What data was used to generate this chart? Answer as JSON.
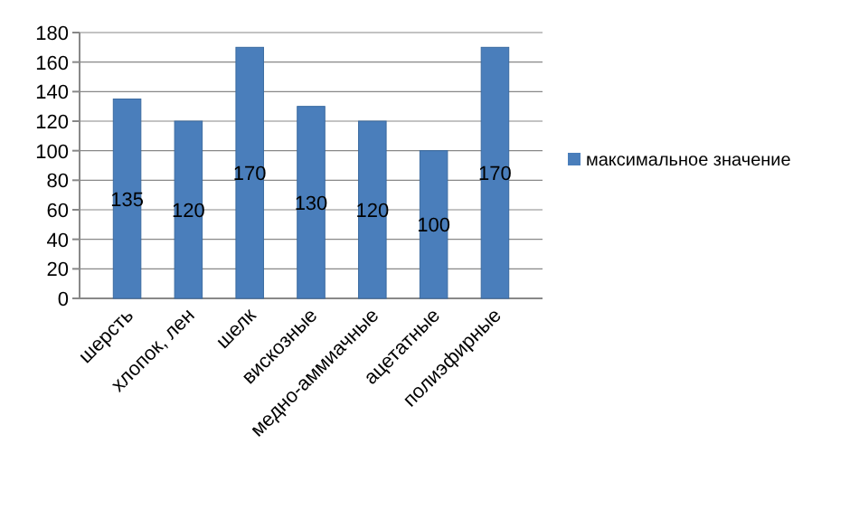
{
  "chart_data": {
    "type": "bar",
    "categories": [
      "шерсть",
      "хлопок, лен",
      "шелк",
      "вискозные",
      "медно-аммиачные",
      "ацетатные",
      "полиэфирные"
    ],
    "series": [
      {
        "name": "максимальное значение",
        "color": "#4a7ebb",
        "values": [
          135,
          120,
          170,
          130,
          120,
          100,
          170
        ]
      }
    ],
    "ylim": [
      0,
      180
    ],
    "yticks": [
      0,
      20,
      40,
      60,
      80,
      100,
      120,
      140,
      160,
      180
    ],
    "grid": "y",
    "legend": "right",
    "data_labels": true
  }
}
